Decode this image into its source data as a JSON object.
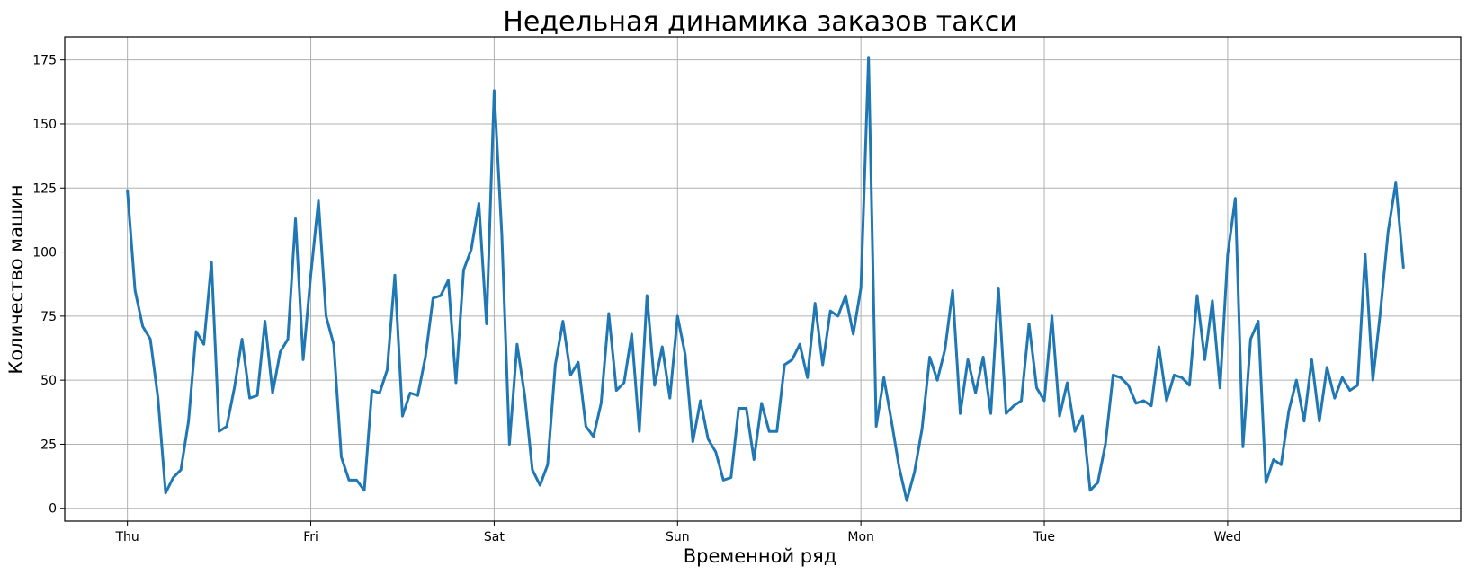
{
  "colors": {
    "series": "#1f77b4",
    "grid": "#b0b0b0"
  },
  "chart_data": {
    "type": "line",
    "title": "Недельная динамика заказов такси",
    "xlabel": "Временной ряд",
    "ylabel": "Количество машин",
    "ylim": [
      -5,
      184
    ],
    "yticks": [
      0,
      25,
      50,
      75,
      100,
      125,
      150,
      175
    ],
    "xlim": [
      -8.2,
      174.5
    ],
    "x_ticks": [
      {
        "x": 0,
        "label": "Thu"
      },
      {
        "x": 24,
        "label": "Fri"
      },
      {
        "x": 48,
        "label": "Sat"
      },
      {
        "x": 72,
        "label": "Sun"
      },
      {
        "x": 96,
        "label": "Mon"
      },
      {
        "x": 120,
        "label": "Tue"
      },
      {
        "x": 144,
        "label": "Wed"
      }
    ],
    "grid": true,
    "series": [
      {
        "name": "Количество машин",
        "values": [
          124,
          85,
          71,
          66,
          43,
          6,
          12,
          15,
          34,
          69,
          64,
          96,
          30,
          32,
          47,
          66,
          43,
          44,
          73,
          45,
          61,
          66,
          113,
          58,
          91,
          120,
          75,
          64,
          20,
          11,
          11,
          7,
          46,
          45,
          54,
          91,
          36,
          45,
          44,
          59,
          82,
          83,
          89,
          49,
          93,
          101,
          119,
          72,
          163,
          107,
          25,
          64,
          44,
          15,
          9,
          17,
          56,
          73,
          52,
          57,
          32,
          28,
          41,
          76,
          46,
          49,
          68,
          30,
          83,
          48,
          63,
          43,
          75,
          60,
          26,
          42,
          27,
          22,
          11,
          12,
          39,
          39,
          19,
          41,
          30,
          30,
          56,
          58,
          64,
          51,
          80,
          56,
          77,
          75,
          83,
          68,
          86,
          176,
          32,
          51,
          34,
          16,
          3,
          14,
          31,
          59,
          50,
          62,
          85,
          37,
          58,
          45,
          59,
          37,
          86,
          37,
          40,
          42,
          72,
          47,
          42,
          75,
          36,
          49,
          30,
          36,
          7,
          10,
          25,
          52,
          51,
          48,
          41,
          42,
          40,
          63,
          42,
          52,
          51,
          48,
          83,
          58,
          81,
          47,
          99,
          121,
          24,
          66,
          73,
          10,
          19,
          17,
          38,
          50,
          34,
          58,
          34,
          55,
          43,
          51,
          46,
          48,
          99,
          50,
          77,
          108,
          127,
          94
        ]
      }
    ]
  }
}
